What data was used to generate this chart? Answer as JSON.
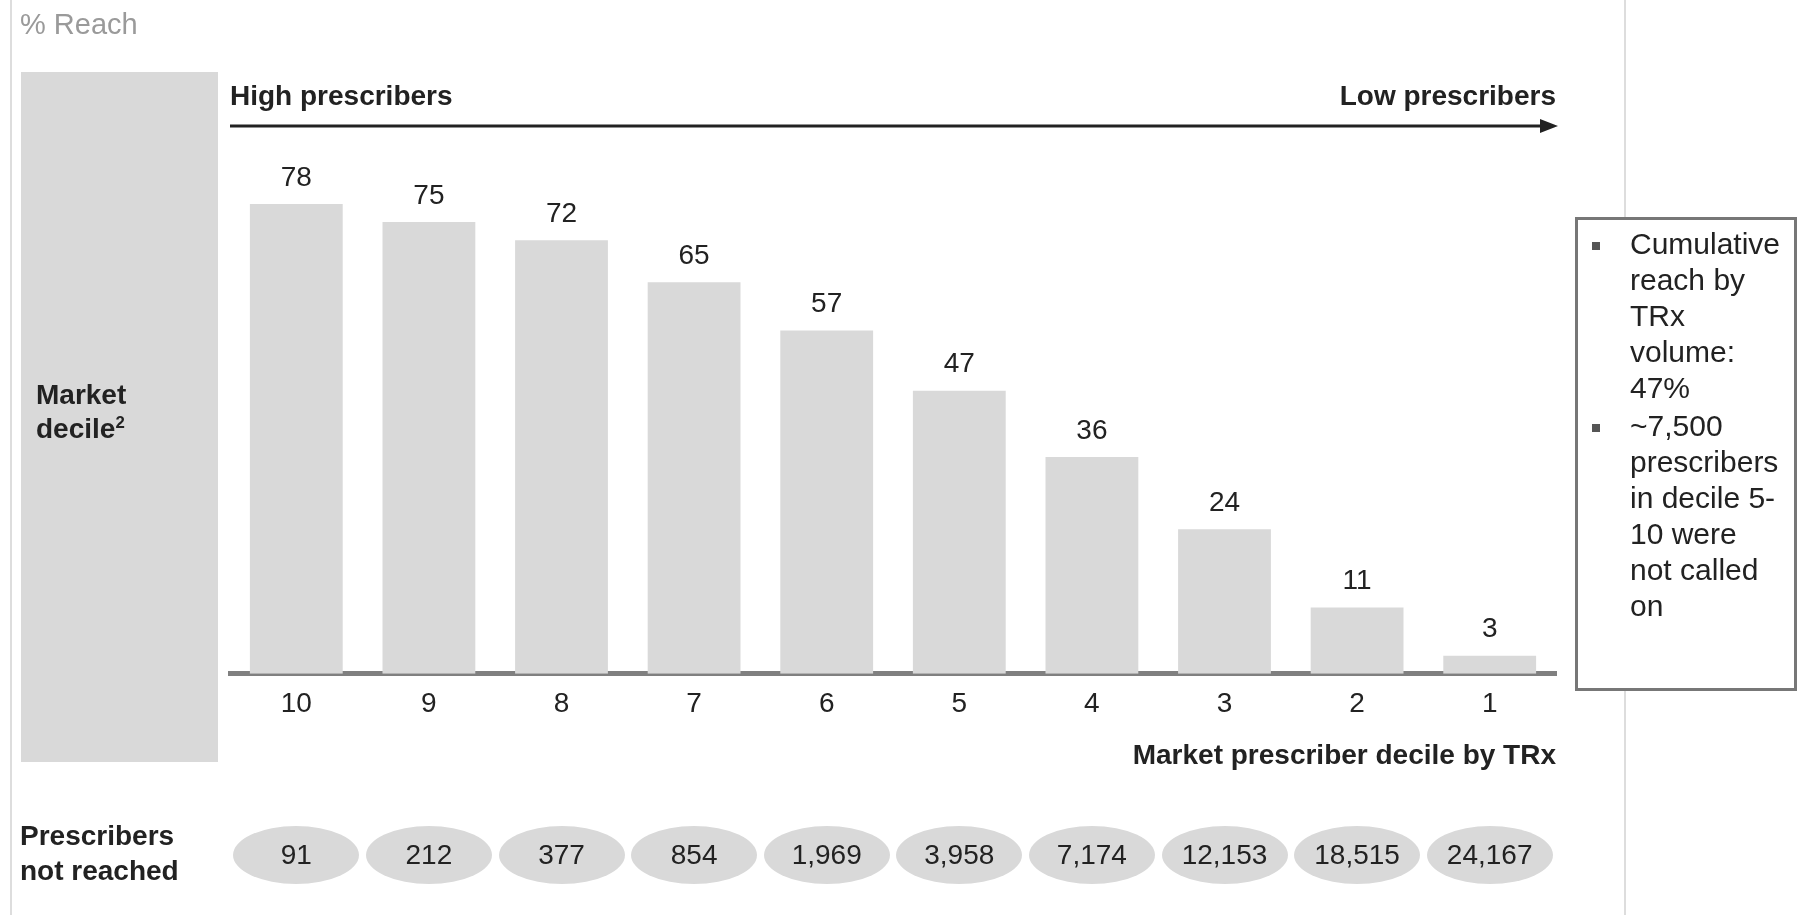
{
  "chart_data": {
    "type": "bar",
    "title": "% Reach",
    "categories": [
      "10",
      "9",
      "8",
      "7",
      "6",
      "5",
      "4",
      "3",
      "2",
      "1"
    ],
    "values": [
      78,
      75,
      72,
      65,
      57,
      47,
      36,
      24,
      11,
      3
    ],
    "color": "#d9d9d9",
    "tick_labels": "x",
    "grid": false,
    "legend": false,
    "data_labels": true,
    "xlabel": "Market prescriber decile by TRx",
    "annotations": [
      "High prescribers",
      "Low prescribers",
      "Market decile$^{2}$",
      "Prescribers not reached",
      "Cumulative reach by TRx volume: 47%",
      "~7,500 prescribers in decile 5-10 were not called on",
      "91",
      "212",
      "377",
      "854",
      "1,969",
      "3,958",
      "7,174",
      "12,153",
      "18,515",
      "24,167"
    ]
  }
}
